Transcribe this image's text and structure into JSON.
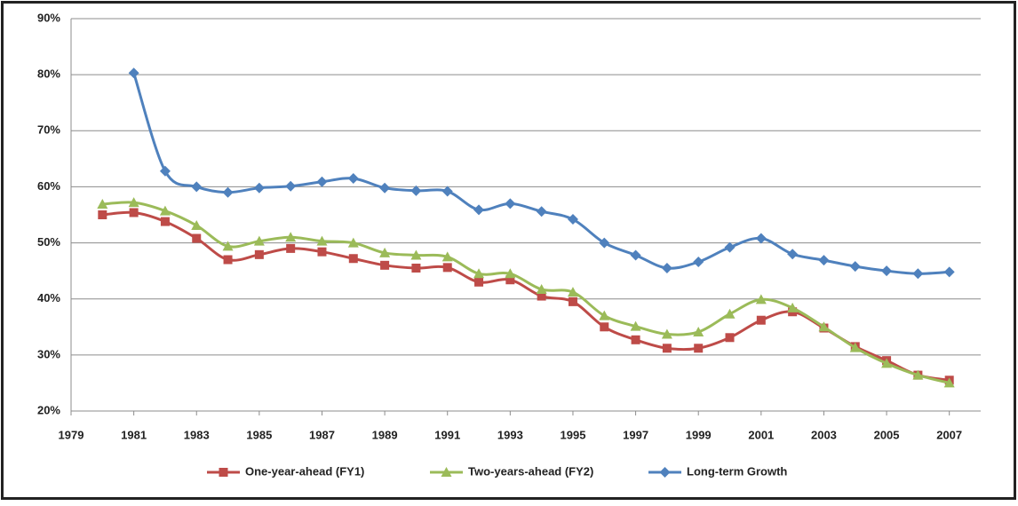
{
  "chart_data": {
    "type": "line",
    "x": [
      1980,
      1981,
      1982,
      1983,
      1984,
      1985,
      1986,
      1987,
      1988,
      1989,
      1990,
      1991,
      1992,
      1993,
      1994,
      1995,
      1996,
      1997,
      1998,
      1999,
      2000,
      2001,
      2002,
      2003,
      2004,
      2005,
      2006,
      2007
    ],
    "series": [
      {
        "name": "One-year-ahead (FY1)",
        "color": "#be4b48",
        "marker": "square",
        "values": [
          55,
          55.4,
          53.8,
          50.8,
          47,
          47.9,
          49,
          48.4,
          47.2,
          46,
          45.5,
          45.6,
          43,
          43.4,
          40.5,
          39.5,
          35,
          32.7,
          31.2,
          31.2,
          33.1,
          36.2,
          37.7,
          34.8,
          31.5,
          29,
          26.4,
          25.5
        ]
      },
      {
        "name": "Two-years-ahead (FY2)",
        "color": "#9bbb59",
        "marker": "triangle",
        "values": [
          56.9,
          57.2,
          55.7,
          53.1,
          49.4,
          50.3,
          51,
          50.3,
          50,
          48.2,
          47.8,
          47.5,
          44.5,
          44.5,
          41.7,
          41.2,
          37,
          35.1,
          33.7,
          34.1,
          37.3,
          39.9,
          38.4,
          35,
          31.3,
          28.5,
          26.4,
          25
        ]
      },
      {
        "name": "Long-term Growth",
        "color": "#4f81bd",
        "marker": "diamond",
        "values": [
          null,
          80.3,
          62.8,
          60,
          59,
          59.8,
          60.1,
          60.9,
          61.5,
          59.8,
          59.3,
          59.2,
          55.9,
          57,
          55.6,
          54.2,
          50,
          47.8,
          45.5,
          46.6,
          49.2,
          50.8,
          48,
          46.9,
          45.8,
          45,
          44.5,
          44.8
        ]
      }
    ],
    "xlim": [
      1979,
      2008
    ],
    "xticks": [
      1979,
      1981,
      1983,
      1985,
      1987,
      1989,
      1991,
      1993,
      1995,
      1997,
      1999,
      2001,
      2003,
      2005,
      2007
    ],
    "ylim": [
      20,
      90
    ],
    "yticks": [
      {
        "value": 20,
        "label": "20%"
      },
      {
        "value": 30,
        "label": "30%"
      },
      {
        "value": 40,
        "label": "40%"
      },
      {
        "value": 50,
        "label": "50%"
      },
      {
        "value": 60,
        "label": "60%"
      },
      {
        "value": 70,
        "label": "70%"
      },
      {
        "value": 80,
        "label": "80%"
      },
      {
        "value": 90,
        "label": "90%"
      }
    ],
    "grid": true,
    "smooth": true,
    "legend": "bottom"
  }
}
